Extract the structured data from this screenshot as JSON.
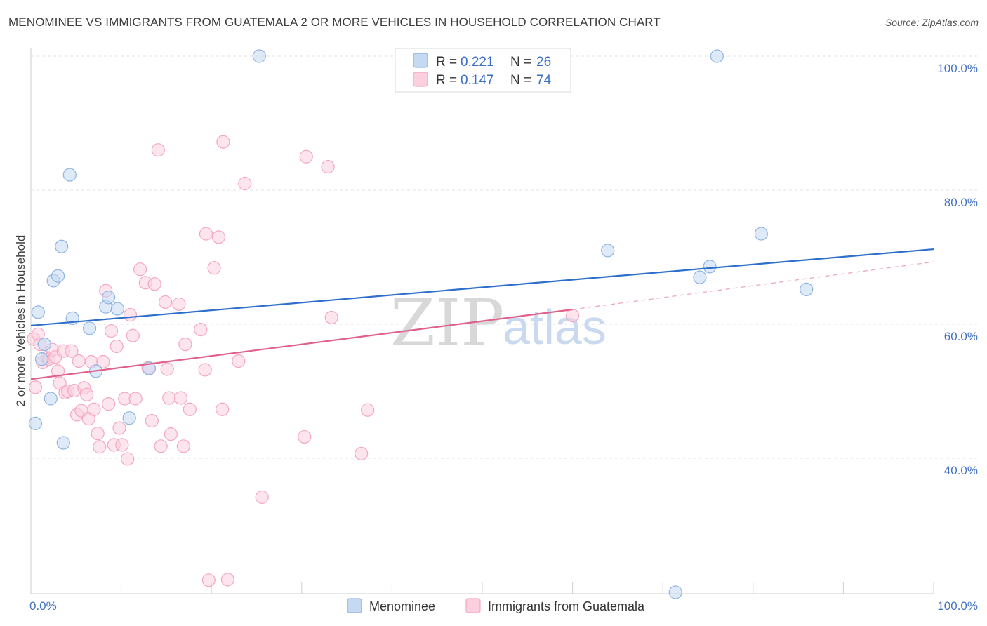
{
  "header": {
    "title": "MENOMINEE VS IMMIGRANTS FROM GUATEMALA 2 OR MORE VEHICLES IN HOUSEHOLD CORRELATION CHART",
    "source": "Source: ZipAtlas.com"
  },
  "watermark": {
    "zip": "ZIP",
    "atlas": "atlas"
  },
  "chart_data": {
    "type": "scatter",
    "title": "MENOMINEE VS IMMIGRANTS FROM GUATEMALA 2 OR MORE VEHICLES IN HOUSEHOLD CORRELATION CHART",
    "xlabel": "",
    "ylabel": "2 or more Vehicles in Household",
    "xlim": [
      0,
      100
    ],
    "ylim": [
      20,
      102
    ],
    "x_tick_labels": {
      "left": "0.0%",
      "right": "100.0%"
    },
    "y_ticks": [
      {
        "value": 100,
        "label": "100.0%"
      },
      {
        "value": 80,
        "label": "80.0%"
      },
      {
        "value": 60,
        "label": "60.0%"
      },
      {
        "value": 40,
        "label": "40.0%"
      }
    ],
    "grid": true,
    "legend_position": "top-center",
    "series": [
      {
        "name": "Menominee",
        "color": "#8fb4e3",
        "line_color": "#2e6fcb",
        "r": "0.221",
        "n": "26",
        "r_label": "R =",
        "n_label": "N =",
        "trend": {
          "x": [
            0,
            100
          ],
          "y": [
            59.8,
            71.2
          ]
        },
        "points": [
          {
            "x": 0.5,
            "y": 45.2
          },
          {
            "x": 0.8,
            "y": 61.8
          },
          {
            "x": 1.2,
            "y": 54.8
          },
          {
            "x": 1.5,
            "y": 57.0
          },
          {
            "x": 2.2,
            "y": 48.9
          },
          {
            "x": 2.5,
            "y": 66.5
          },
          {
            "x": 3.0,
            "y": 67.2
          },
          {
            "x": 3.4,
            "y": 71.6
          },
          {
            "x": 3.6,
            "y": 42.3
          },
          {
            "x": 4.3,
            "y": 82.3
          },
          {
            "x": 4.6,
            "y": 60.9
          },
          {
            "x": 6.5,
            "y": 59.4
          },
          {
            "x": 7.2,
            "y": 53.0
          },
          {
            "x": 8.3,
            "y": 62.6
          },
          {
            "x": 8.6,
            "y": 64.0
          },
          {
            "x": 9.6,
            "y": 62.3
          },
          {
            "x": 10.9,
            "y": 46.0
          },
          {
            "x": 13.1,
            "y": 53.4
          },
          {
            "x": 25.3,
            "y": 100.0
          },
          {
            "x": 63.9,
            "y": 71.0
          },
          {
            "x": 71.4,
            "y": 20.0
          },
          {
            "x": 74.1,
            "y": 67.0
          },
          {
            "x": 75.2,
            "y": 68.6
          },
          {
            "x": 76.0,
            "y": 100.0
          },
          {
            "x": 80.9,
            "y": 73.5
          },
          {
            "x": 85.9,
            "y": 65.2
          }
        ]
      },
      {
        "name": "Immigrants from Guatemala",
        "color": "#f4a7c0",
        "line_color": "#e0608c",
        "r": "0.147",
        "n": "74",
        "r_label": "R =",
        "n_label": "N =",
        "trend": {
          "x": [
            0,
            60
          ],
          "y": [
            51.8,
            62.2
          ]
        },
        "trend_dashed": {
          "x": [
            60,
            100
          ],
          "y": [
            62.2,
            69.3
          ]
        },
        "points": [
          {
            "x": 0.3,
            "y": 57.8
          },
          {
            "x": 0.5,
            "y": 50.6
          },
          {
            "x": 0.8,
            "y": 58.5
          },
          {
            "x": 1.0,
            "y": 57.0
          },
          {
            "x": 1.3,
            "y": 54.3
          },
          {
            "x": 1.8,
            "y": 55.0
          },
          {
            "x": 2.0,
            "y": 54.8
          },
          {
            "x": 2.4,
            "y": 56.2
          },
          {
            "x": 2.7,
            "y": 55.1
          },
          {
            "x": 3.0,
            "y": 53.0
          },
          {
            "x": 3.2,
            "y": 51.2
          },
          {
            "x": 3.6,
            "y": 56.0
          },
          {
            "x": 3.8,
            "y": 49.8
          },
          {
            "x": 4.1,
            "y": 50.0
          },
          {
            "x": 4.5,
            "y": 56.0
          },
          {
            "x": 4.8,
            "y": 50.1
          },
          {
            "x": 5.1,
            "y": 46.5
          },
          {
            "x": 5.3,
            "y": 54.5
          },
          {
            "x": 5.6,
            "y": 47.1
          },
          {
            "x": 5.9,
            "y": 50.5
          },
          {
            "x": 6.2,
            "y": 49.5
          },
          {
            "x": 6.4,
            "y": 45.9
          },
          {
            "x": 6.7,
            "y": 54.4
          },
          {
            "x": 7.0,
            "y": 47.3
          },
          {
            "x": 7.4,
            "y": 43.7
          },
          {
            "x": 7.6,
            "y": 41.7
          },
          {
            "x": 8.0,
            "y": 54.4
          },
          {
            "x": 8.3,
            "y": 65.0
          },
          {
            "x": 8.6,
            "y": 48.1
          },
          {
            "x": 8.9,
            "y": 59.0
          },
          {
            "x": 9.2,
            "y": 42.0
          },
          {
            "x": 9.5,
            "y": 56.7
          },
          {
            "x": 9.8,
            "y": 44.5
          },
          {
            "x": 10.1,
            "y": 42.0
          },
          {
            "x": 10.4,
            "y": 48.9
          },
          {
            "x": 10.7,
            "y": 39.9
          },
          {
            "x": 11.0,
            "y": 61.4
          },
          {
            "x": 11.3,
            "y": 58.3
          },
          {
            "x": 11.6,
            "y": 48.9
          },
          {
            "x": 12.1,
            "y": 68.2
          },
          {
            "x": 12.7,
            "y": 66.2
          },
          {
            "x": 13.0,
            "y": 53.5
          },
          {
            "x": 13.4,
            "y": 45.6
          },
          {
            "x": 13.7,
            "y": 66.0
          },
          {
            "x": 14.1,
            "y": 86.0
          },
          {
            "x": 14.4,
            "y": 41.8
          },
          {
            "x": 14.9,
            "y": 63.3
          },
          {
            "x": 15.1,
            "y": 53.3
          },
          {
            "x": 15.3,
            "y": 49.0
          },
          {
            "x": 15.5,
            "y": 43.6
          },
          {
            "x": 16.4,
            "y": 63.0
          },
          {
            "x": 16.6,
            "y": 49.0
          },
          {
            "x": 16.9,
            "y": 41.8
          },
          {
            "x": 17.1,
            "y": 57.0
          },
          {
            "x": 17.6,
            "y": 47.3
          },
          {
            "x": 18.8,
            "y": 59.2
          },
          {
            "x": 19.3,
            "y": 53.2
          },
          {
            "x": 19.4,
            "y": 73.5
          },
          {
            "x": 19.7,
            "y": 21.8
          },
          {
            "x": 20.3,
            "y": 68.4
          },
          {
            "x": 20.8,
            "y": 73.0
          },
          {
            "x": 21.2,
            "y": 47.3
          },
          {
            "x": 21.3,
            "y": 87.2
          },
          {
            "x": 21.8,
            "y": 21.9
          },
          {
            "x": 23.0,
            "y": 54.5
          },
          {
            "x": 23.7,
            "y": 81.0
          },
          {
            "x": 25.6,
            "y": 34.2
          },
          {
            "x": 30.3,
            "y": 43.2
          },
          {
            "x": 30.5,
            "y": 85.0
          },
          {
            "x": 32.9,
            "y": 83.5
          },
          {
            "x": 33.3,
            "y": 61.0
          },
          {
            "x": 36.6,
            "y": 40.7
          },
          {
            "x": 37.3,
            "y": 47.2
          },
          {
            "x": 60.0,
            "y": 61.3
          }
        ]
      }
    ]
  }
}
